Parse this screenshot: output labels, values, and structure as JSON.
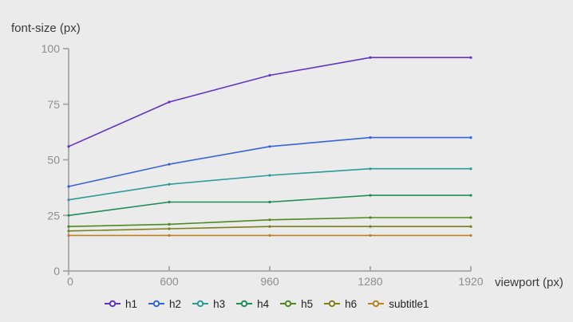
{
  "background": "#ebebeb",
  "axis": {
    "line_color": "#a6a6a6",
    "tick_label_color": "#8e8e8e",
    "label_color": "#3a3a3a"
  },
  "chart_data": {
    "type": "line",
    "title": "font-size (px)",
    "xlabel": "viewport (px)",
    "ylabel": "font-size (px)",
    "x": [
      0,
      600,
      960,
      1280,
      1920
    ],
    "x_tick_labels": [
      "0",
      "600",
      "960",
      "1280",
      "1920"
    ],
    "x_tick_spacing": "equal",
    "y_ticks": [
      0,
      25,
      50,
      75,
      100
    ],
    "ylim": [
      0,
      100
    ],
    "grid": false,
    "legend_position": "bottom",
    "series": [
      {
        "name": "h1",
        "color": "#6134c8",
        "values": [
          56,
          76,
          88,
          96,
          96
        ]
      },
      {
        "name": "h2",
        "color": "#3565d6",
        "values": [
          38,
          48,
          56,
          60,
          60
        ]
      },
      {
        "name": "h3",
        "color": "#2b9b99",
        "values": [
          32,
          39,
          43,
          46,
          46
        ]
      },
      {
        "name": "h4",
        "color": "#1e8e58",
        "values": [
          25,
          31,
          31,
          34,
          34
        ]
      },
      {
        "name": "h5",
        "color": "#4d8b1f",
        "values": [
          20,
          21,
          23,
          24,
          24
        ]
      },
      {
        "name": "h6",
        "color": "#7b801c",
        "values": [
          18,
          19,
          20,
          20,
          20
        ]
      },
      {
        "name": "subtitle1",
        "color": "#c17f24",
        "values": [
          16,
          16,
          16,
          16,
          16
        ]
      }
    ]
  }
}
